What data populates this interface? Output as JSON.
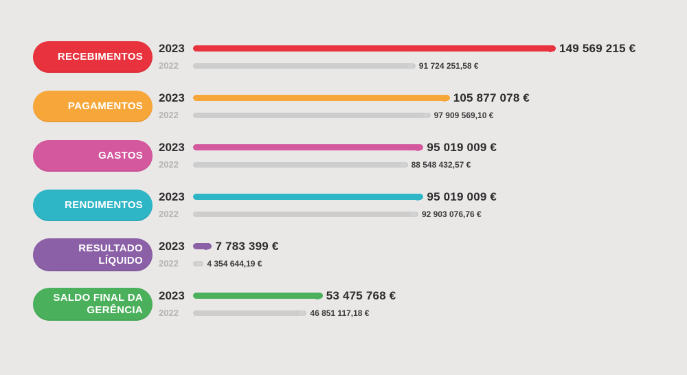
{
  "chart_data": {
    "type": "bar",
    "orientation": "horizontal",
    "unit": "€",
    "series_years": [
      "2023",
      "2022"
    ],
    "legend_position": "none",
    "grid": false,
    "max_value": 149569215,
    "rows": [
      {
        "label": "RECEBIMENTOS",
        "color": "#e8323d",
        "values": [
          {
            "year": "2023",
            "amount": 149569215,
            "display": "149 569 215 €"
          },
          {
            "year": "2022",
            "amount": 91724251.58,
            "display": "91 724 251,58 €"
          }
        ]
      },
      {
        "label": "PAGAMENTOS",
        "color": "#f7a73a",
        "values": [
          {
            "year": "2023",
            "amount": 105877078,
            "display": "105 877 078 €"
          },
          {
            "year": "2022",
            "amount": 97909569.1,
            "display": "97 909 569,10 €"
          }
        ]
      },
      {
        "label": "GASTOS",
        "color": "#d4589d",
        "values": [
          {
            "year": "2023",
            "amount": 95019009,
            "display": "95 019 009 €"
          },
          {
            "year": "2022",
            "amount": 88548432.57,
            "display": "88 548 432,57 €"
          }
        ]
      },
      {
        "label": "RENDIMENTOS",
        "color": "#2eb5c6",
        "values": [
          {
            "year": "2023",
            "amount": 95019009,
            "display": "95 019 009 €"
          },
          {
            "year": "2022",
            "amount": 92903076.76,
            "display": "92 903 076,76 €"
          }
        ]
      },
      {
        "label": "RESULTADO LÍQUIDO",
        "color": "#8b60a7",
        "values": [
          {
            "year": "2023",
            "amount": 7783399,
            "display": "7 783 399 €"
          },
          {
            "year": "2022",
            "amount": 4354644.19,
            "display": "4 354 644,19 €"
          }
        ]
      },
      {
        "label": "SALDO FINAL DA GERÊNCIA",
        "color": "#4bb05c",
        "values": [
          {
            "year": "2023",
            "amount": 53475768,
            "display": "53 475 768 €"
          },
          {
            "year": "2022",
            "amount": 46851117.18,
            "display": "46 851 117,18 €"
          }
        ]
      }
    ]
  }
}
